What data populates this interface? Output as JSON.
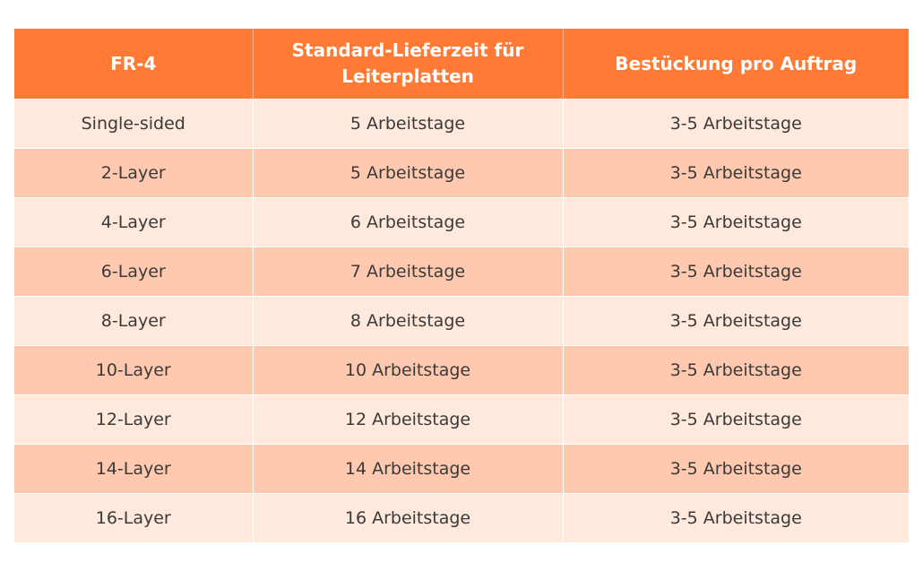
{
  "table": {
    "headers": [
      "FR-4",
      "Standard-Lieferzeit für Leiterplatten",
      "Bestückung pro Auftrag"
    ],
    "rows": [
      [
        "Single-sided",
        "5 Arbeitstage",
        "3-5 Arbeitstage"
      ],
      [
        "2-Layer",
        "5 Arbeitstage",
        "3-5 Arbeitstage"
      ],
      [
        "4-Layer",
        "6 Arbeitstage",
        "3-5 Arbeitstage"
      ],
      [
        "6-Layer",
        "7 Arbeitstage",
        "3-5 Arbeitstage"
      ],
      [
        "8-Layer",
        "8 Arbeitstage",
        "3-5 Arbeitstage"
      ],
      [
        "10-Layer",
        "10 Arbeitstage",
        "3-5 Arbeitstage"
      ],
      [
        "12-Layer",
        "12 Arbeitstage",
        "3-5 Arbeitstage"
      ],
      [
        "14-Layer",
        "14 Arbeitstage",
        "3-5 Arbeitstage"
      ],
      [
        "16-Layer",
        "16 Arbeitstage",
        "3-5 Arbeitstage"
      ]
    ]
  },
  "colors": {
    "header_bg": "#fe7a35",
    "row_light": "#ffe8dc",
    "row_dark": "#fec9ae"
  }
}
